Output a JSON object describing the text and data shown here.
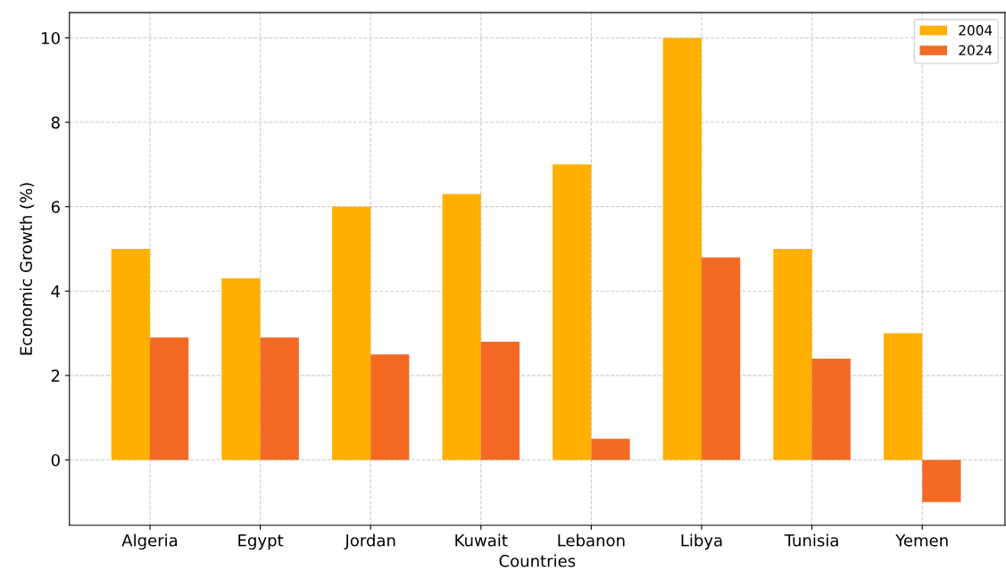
{
  "chart_data": {
    "type": "bar",
    "xlabel": "Countries",
    "ylabel": "Economic Growth (%)",
    "categories": [
      "Algeria",
      "Egypt",
      "Jordan",
      "Kuwait",
      "Lebanon",
      "Libya",
      "Tunisia",
      "Yemen"
    ],
    "series": [
      {
        "name": "2004",
        "color": "#ffb000",
        "values": [
          5,
          4.3,
          6,
          6.3,
          7,
          10,
          5,
          3
        ]
      },
      {
        "name": "2024",
        "color": "#f46a25",
        "values": [
          2.9,
          2.9,
          2.5,
          2.8,
          0.5,
          4.8,
          2.4,
          -1.0
        ]
      }
    ],
    "ylim": [
      -1.55,
      10.6
    ],
    "yticks": [
      0,
      2,
      4,
      6,
      8,
      10
    ],
    "grid": true,
    "legend": "top right"
  }
}
